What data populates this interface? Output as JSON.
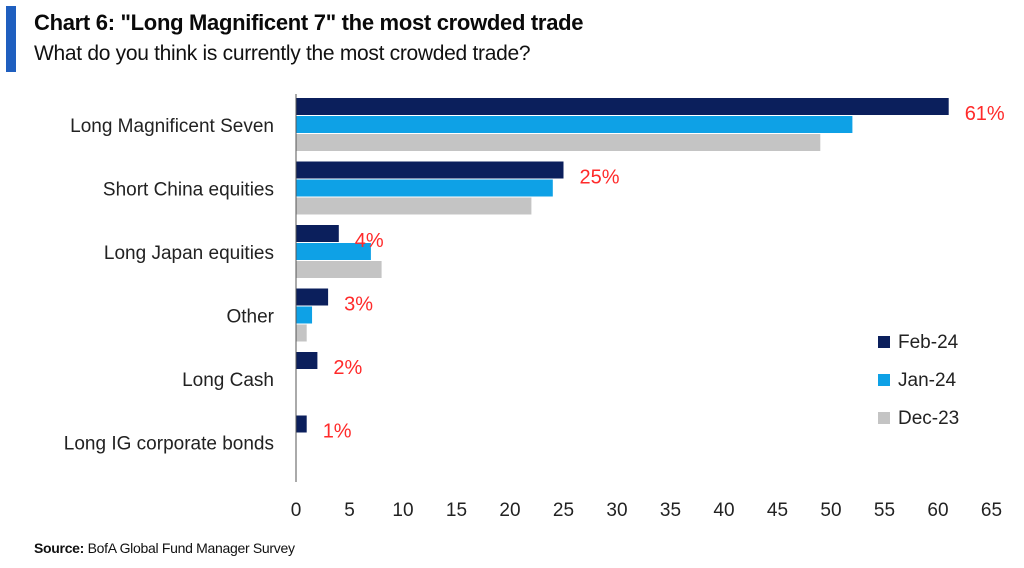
{
  "header": {
    "title": "Chart 6: \"Long Magnificent 7\" the most crowded trade",
    "subtitle": "What do you think is currently the most crowded trade?"
  },
  "footer": {
    "source_label": "Source:",
    "source_text": "BofA Global Fund Manager Survey"
  },
  "chart_data": {
    "type": "bar",
    "orientation": "horizontal",
    "categories": [
      "Long Magnificent Seven",
      "Short China equities",
      "Long Japan equities",
      "Other",
      "Long Cash",
      "Long IG corporate bonds"
    ],
    "series": [
      {
        "name": "Feb-24",
        "color": "#0b1f5c",
        "values": [
          61,
          25,
          4,
          3,
          2,
          1
        ]
      },
      {
        "name": "Jan-24",
        "color": "#0ea1e6",
        "values": [
          52,
          24,
          7,
          1.5,
          0,
          0
        ]
      },
      {
        "name": "Dec-23",
        "color": "#c4c4c4",
        "values": [
          49,
          22,
          8,
          1,
          0,
          0
        ]
      }
    ],
    "data_labels": [
      "61%",
      "25%",
      "4%",
      "3%",
      "2%",
      "1%"
    ],
    "data_label_color": "#ff2a2a",
    "xlim": [
      0,
      65
    ],
    "xticks": [
      "0",
      "5",
      "10",
      "15",
      "20",
      "25",
      "30",
      "35",
      "40",
      "45",
      "50",
      "55",
      "60",
      "65"
    ],
    "grid": false,
    "legend_position": "bottom-right"
  }
}
